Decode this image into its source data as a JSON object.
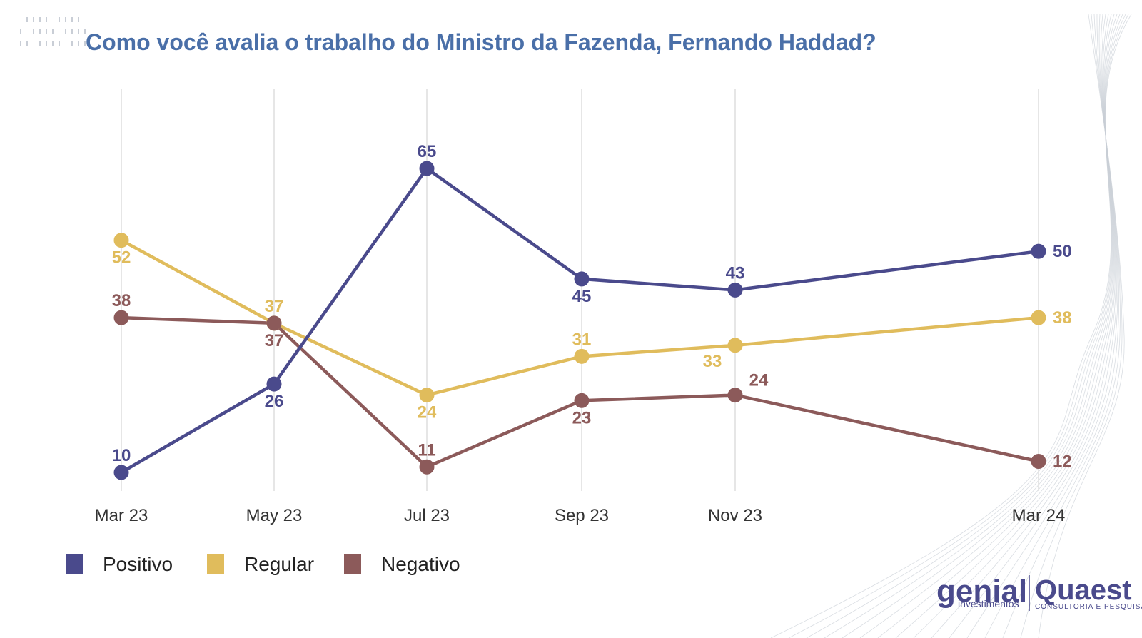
{
  "title": "Como você avalia o trabalho do Ministro da Fazenda, Fernando Haddad?",
  "colors": {
    "title": "#4a6fa8",
    "positivo": "#4a4a8c",
    "regular": "#e0bc5c",
    "negativo": "#8c5a5a",
    "grid": "#e6e6e6",
    "decor": "#c9ced6"
  },
  "logos": {
    "genial": "genial",
    "genial_sub": "investimentos",
    "quaest": "Quaest",
    "quaest_sub": "CONSULTORIA E PESQUISA"
  },
  "chart_data": {
    "type": "line",
    "categories": [
      "Mar 23",
      "May 23",
      "Jul 23",
      "Sep 23",
      "Nov 23",
      "Mar 24"
    ],
    "series": [
      {
        "name": "Positivo",
        "values": [
          10,
          26,
          65,
          45,
          43,
          50
        ]
      },
      {
        "name": "Regular",
        "values": [
          52,
          37,
          24,
          31,
          33,
          38
        ]
      },
      {
        "name": "Negativo",
        "values": [
          38,
          37,
          11,
          23,
          24,
          12
        ]
      }
    ],
    "legend_position": "bottom-left",
    "grid": "vertical"
  }
}
